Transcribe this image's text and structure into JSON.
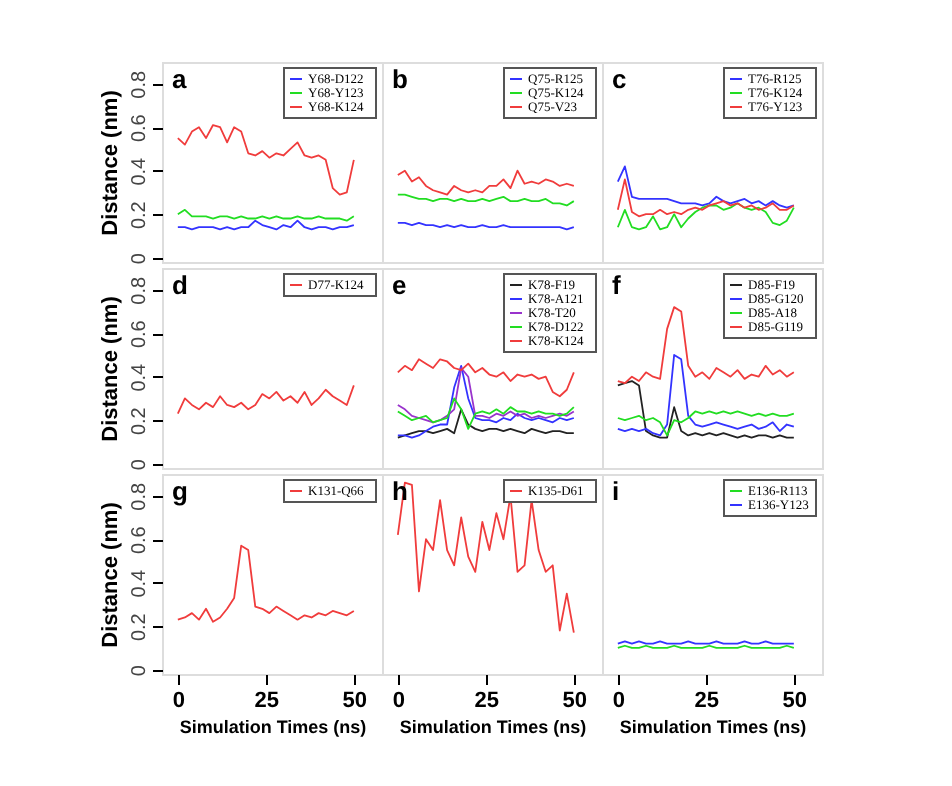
{
  "chart_data": [
    {
      "type": "line",
      "annotations": [
        "a"
      ],
      "ylabel": "Distance (nm)",
      "x": [
        0,
        2,
        4,
        6,
        8,
        10,
        12,
        14,
        16,
        18,
        20,
        22,
        24,
        26,
        28,
        30,
        32,
        34,
        36,
        38,
        40,
        42,
        44,
        46,
        48,
        50
      ],
      "xlim": [
        -4.5,
        58
      ],
      "ylim": [
        -0.02,
        0.9
      ],
      "xticks": [
        0,
        25,
        50
      ],
      "yticks": [
        0,
        0.2,
        0.4,
        0.6,
        0.8
      ],
      "tick_labels": "y",
      "legend": "top right",
      "series": [
        {
          "name": "Y68-D122",
          "color": "#3333ff",
          "values": [
            0.14,
            0.14,
            0.13,
            0.14,
            0.14,
            0.14,
            0.13,
            0.14,
            0.13,
            0.14,
            0.14,
            0.17,
            0.15,
            0.14,
            0.13,
            0.15,
            0.14,
            0.17,
            0.14,
            0.13,
            0.14,
            0.14,
            0.13,
            0.14,
            0.14,
            0.15
          ]
        },
        {
          "name": "Y68-Y123",
          "color": "#22dd22",
          "values": [
            0.2,
            0.22,
            0.19,
            0.19,
            0.19,
            0.18,
            0.19,
            0.19,
            0.18,
            0.19,
            0.18,
            0.18,
            0.19,
            0.18,
            0.19,
            0.18,
            0.18,
            0.19,
            0.18,
            0.18,
            0.19,
            0.18,
            0.18,
            0.18,
            0.17,
            0.19
          ]
        },
        {
          "name": "Y68-K124",
          "color": "#f03c3c",
          "values": [
            0.55,
            0.52,
            0.58,
            0.6,
            0.55,
            0.61,
            0.6,
            0.53,
            0.6,
            0.58,
            0.48,
            0.47,
            0.49,
            0.46,
            0.48,
            0.47,
            0.5,
            0.53,
            0.47,
            0.46,
            0.47,
            0.45,
            0.32,
            0.29,
            0.3,
            0.45
          ]
        }
      ]
    },
    {
      "type": "line",
      "annotations": [
        "b"
      ],
      "x": [
        0,
        2,
        4,
        6,
        8,
        10,
        12,
        14,
        16,
        18,
        20,
        22,
        24,
        26,
        28,
        30,
        32,
        34,
        36,
        38,
        40,
        42,
        44,
        46,
        48,
        50
      ],
      "xlim": [
        -4.5,
        58
      ],
      "ylim": [
        -0.02,
        0.9
      ],
      "xticks": [
        0,
        25,
        50
      ],
      "yticks": [
        0,
        0.2,
        0.4,
        0.6,
        0.8
      ],
      "tick_labels": false,
      "legend": "top right",
      "series": [
        {
          "name": "Q75-R125",
          "color": "#3333ff",
          "values": [
            0.16,
            0.16,
            0.15,
            0.16,
            0.15,
            0.15,
            0.14,
            0.15,
            0.14,
            0.15,
            0.14,
            0.14,
            0.15,
            0.14,
            0.14,
            0.15,
            0.14,
            0.14,
            0.14,
            0.14,
            0.14,
            0.14,
            0.14,
            0.14,
            0.13,
            0.14
          ]
        },
        {
          "name": "Q75-K124",
          "color": "#22dd22",
          "values": [
            0.29,
            0.29,
            0.28,
            0.27,
            0.27,
            0.26,
            0.27,
            0.27,
            0.26,
            0.27,
            0.26,
            0.26,
            0.27,
            0.26,
            0.27,
            0.28,
            0.26,
            0.26,
            0.27,
            0.26,
            0.26,
            0.27,
            0.25,
            0.25,
            0.24,
            0.26
          ]
        },
        {
          "name": "Q75-V23",
          "color": "#f03c3c",
          "values": [
            0.38,
            0.4,
            0.35,
            0.37,
            0.33,
            0.31,
            0.3,
            0.29,
            0.33,
            0.31,
            0.3,
            0.31,
            0.3,
            0.33,
            0.33,
            0.36,
            0.32,
            0.4,
            0.34,
            0.35,
            0.34,
            0.36,
            0.35,
            0.33,
            0.34,
            0.33
          ]
        }
      ]
    },
    {
      "type": "line",
      "annotations": [
        "c"
      ],
      "x": [
        0,
        2,
        4,
        6,
        8,
        10,
        12,
        14,
        16,
        18,
        20,
        22,
        24,
        26,
        28,
        30,
        32,
        34,
        36,
        38,
        40,
        42,
        44,
        46,
        48,
        50
      ],
      "xlim": [
        -4.5,
        58
      ],
      "ylim": [
        -0.02,
        0.9
      ],
      "xticks": [
        0,
        25,
        50
      ],
      "yticks": [
        0,
        0.2,
        0.4,
        0.6,
        0.8
      ],
      "tick_labels": false,
      "legend": "top right",
      "series": [
        {
          "name": "T76-R125",
          "color": "#3333ff",
          "values": [
            0.35,
            0.42,
            0.28,
            0.27,
            0.27,
            0.27,
            0.27,
            0.27,
            0.26,
            0.25,
            0.25,
            0.25,
            0.24,
            0.25,
            0.28,
            0.26,
            0.25,
            0.26,
            0.27,
            0.25,
            0.26,
            0.24,
            0.26,
            0.24,
            0.23,
            0.24
          ]
        },
        {
          "name": "T76-K124",
          "color": "#22dd22",
          "values": [
            0.14,
            0.22,
            0.14,
            0.13,
            0.14,
            0.19,
            0.13,
            0.14,
            0.2,
            0.14,
            0.18,
            0.21,
            0.23,
            0.24,
            0.24,
            0.22,
            0.23,
            0.25,
            0.23,
            0.22,
            0.23,
            0.21,
            0.16,
            0.15,
            0.17,
            0.23
          ]
        },
        {
          "name": "T76-Y123",
          "color": "#f03c3c",
          "values": [
            0.22,
            0.36,
            0.21,
            0.19,
            0.2,
            0.2,
            0.22,
            0.2,
            0.21,
            0.2,
            0.22,
            0.23,
            0.22,
            0.24,
            0.25,
            0.26,
            0.24,
            0.25,
            0.23,
            0.24,
            0.22,
            0.23,
            0.25,
            0.22,
            0.22,
            0.24
          ]
        }
      ]
    },
    {
      "type": "line",
      "annotations": [
        "d"
      ],
      "ylabel": "Distance (nm)",
      "x": [
        0,
        2,
        4,
        6,
        8,
        10,
        12,
        14,
        16,
        18,
        20,
        22,
        24,
        26,
        28,
        30,
        32,
        34,
        36,
        38,
        40,
        42,
        44,
        46,
        48,
        50
      ],
      "xlim": [
        -4.5,
        58
      ],
      "ylim": [
        -0.02,
        0.9
      ],
      "xticks": [
        0,
        25,
        50
      ],
      "yticks": [
        0,
        0.2,
        0.4,
        0.6,
        0.8
      ],
      "tick_labels": "y",
      "legend": "top right",
      "series": [
        {
          "name": "D77-K124",
          "color": "#f03c3c",
          "values": [
            0.23,
            0.3,
            0.27,
            0.25,
            0.28,
            0.26,
            0.31,
            0.27,
            0.26,
            0.28,
            0.25,
            0.27,
            0.32,
            0.3,
            0.33,
            0.29,
            0.31,
            0.28,
            0.33,
            0.27,
            0.3,
            0.34,
            0.31,
            0.29,
            0.27,
            0.36
          ]
        }
      ]
    },
    {
      "type": "line",
      "annotations": [
        "e"
      ],
      "x": [
        0,
        2,
        4,
        6,
        8,
        10,
        12,
        14,
        16,
        18,
        20,
        22,
        24,
        26,
        28,
        30,
        32,
        34,
        36,
        38,
        40,
        42,
        44,
        46,
        48,
        50
      ],
      "xlim": [
        -4.5,
        58
      ],
      "ylim": [
        -0.02,
        0.9
      ],
      "xticks": [
        0,
        25,
        50
      ],
      "yticks": [
        0,
        0.2,
        0.4,
        0.6,
        0.8
      ],
      "tick_labels": false,
      "legend": "top right",
      "series": [
        {
          "name": "K78-F19",
          "color": "#222222",
          "values": [
            0.12,
            0.13,
            0.14,
            0.15,
            0.15,
            0.14,
            0.15,
            0.16,
            0.14,
            0.25,
            0.18,
            0.16,
            0.15,
            0.16,
            0.16,
            0.15,
            0.16,
            0.15,
            0.14,
            0.16,
            0.15,
            0.14,
            0.15,
            0.15,
            0.14,
            0.14
          ]
        },
        {
          "name": "K78-A121",
          "color": "#3333ff",
          "values": [
            0.13,
            0.13,
            0.12,
            0.13,
            0.15,
            0.17,
            0.18,
            0.18,
            0.35,
            0.45,
            0.3,
            0.21,
            0.2,
            0.2,
            0.19,
            0.21,
            0.2,
            0.23,
            0.21,
            0.2,
            0.21,
            0.2,
            0.19,
            0.21,
            0.2,
            0.21
          ]
        },
        {
          "name": "K78-T20",
          "color": "#9933cc",
          "values": [
            0.27,
            0.25,
            0.22,
            0.21,
            0.2,
            0.19,
            0.2,
            0.22,
            0.25,
            0.44,
            0.4,
            0.22,
            0.22,
            0.21,
            0.23,
            0.22,
            0.24,
            0.22,
            0.23,
            0.21,
            0.22,
            0.21,
            0.22,
            0.23,
            0.22,
            0.24
          ]
        },
        {
          "name": "K78-D122",
          "color": "#22dd22",
          "values": [
            0.24,
            0.22,
            0.2,
            0.21,
            0.22,
            0.19,
            0.2,
            0.21,
            0.3,
            0.25,
            0.16,
            0.23,
            0.24,
            0.23,
            0.25,
            0.23,
            0.26,
            0.24,
            0.24,
            0.23,
            0.24,
            0.23,
            0.23,
            0.22,
            0.23,
            0.26
          ]
        },
        {
          "name": "K78-K124",
          "color": "#f03c3c",
          "values": [
            0.42,
            0.45,
            0.43,
            0.48,
            0.46,
            0.44,
            0.48,
            0.47,
            0.44,
            0.43,
            0.46,
            0.42,
            0.44,
            0.41,
            0.4,
            0.42,
            0.38,
            0.41,
            0.4,
            0.41,
            0.39,
            0.4,
            0.33,
            0.31,
            0.34,
            0.42
          ]
        }
      ]
    },
    {
      "type": "line",
      "annotations": [
        "f"
      ],
      "x": [
        0,
        2,
        4,
        6,
        8,
        10,
        12,
        14,
        16,
        18,
        20,
        22,
        24,
        26,
        28,
        30,
        32,
        34,
        36,
        38,
        40,
        42,
        44,
        46,
        48,
        50
      ],
      "xlim": [
        -4.5,
        58
      ],
      "ylim": [
        -0.02,
        0.9
      ],
      "xticks": [
        0,
        25,
        50
      ],
      "yticks": [
        0,
        0.2,
        0.4,
        0.6,
        0.8
      ],
      "tick_labels": false,
      "legend": "top right",
      "series": [
        {
          "name": "D85-F19",
          "color": "#222222",
          "values": [
            0.36,
            0.37,
            0.38,
            0.36,
            0.15,
            0.13,
            0.12,
            0.12,
            0.26,
            0.15,
            0.13,
            0.14,
            0.13,
            0.14,
            0.13,
            0.14,
            0.13,
            0.12,
            0.13,
            0.12,
            0.13,
            0.13,
            0.12,
            0.13,
            0.12,
            0.12
          ]
        },
        {
          "name": "D85-G120",
          "color": "#3333ff",
          "values": [
            0.16,
            0.15,
            0.16,
            0.15,
            0.16,
            0.14,
            0.13,
            0.18,
            0.5,
            0.48,
            0.22,
            0.18,
            0.17,
            0.18,
            0.19,
            0.18,
            0.17,
            0.16,
            0.17,
            0.18,
            0.16,
            0.17,
            0.19,
            0.15,
            0.18,
            0.17
          ]
        },
        {
          "name": "D85-A18",
          "color": "#22dd22",
          "values": [
            0.21,
            0.2,
            0.21,
            0.22,
            0.2,
            0.21,
            0.19,
            0.13,
            0.2,
            0.19,
            0.21,
            0.24,
            0.23,
            0.24,
            0.23,
            0.24,
            0.23,
            0.24,
            0.23,
            0.22,
            0.23,
            0.22,
            0.23,
            0.22,
            0.22,
            0.23
          ]
        },
        {
          "name": "D85-G119",
          "color": "#f03c3c",
          "values": [
            0.38,
            0.37,
            0.4,
            0.38,
            0.42,
            0.4,
            0.39,
            0.62,
            0.72,
            0.7,
            0.45,
            0.4,
            0.42,
            0.39,
            0.44,
            0.42,
            0.4,
            0.43,
            0.39,
            0.41,
            0.4,
            0.45,
            0.41,
            0.43,
            0.4,
            0.42
          ]
        }
      ]
    },
    {
      "type": "line",
      "annotations": [
        "g"
      ],
      "xlabel": "Simulation Times (ns)",
      "ylabel": "Distance (nm)",
      "x": [
        0,
        2,
        4,
        6,
        8,
        10,
        12,
        14,
        16,
        18,
        20,
        22,
        24,
        26,
        28,
        30,
        32,
        34,
        36,
        38,
        40,
        42,
        44,
        46,
        48,
        50
      ],
      "xlim": [
        -4.5,
        58
      ],
      "ylim": [
        -0.02,
        0.9
      ],
      "xticks": [
        0,
        25,
        50
      ],
      "yticks": [
        0,
        0.2,
        0.4,
        0.6,
        0.8
      ],
      "legend": "top right",
      "series": [
        {
          "name": "K131-Q66",
          "color": "#f03c3c",
          "values": [
            0.23,
            0.24,
            0.26,
            0.23,
            0.28,
            0.22,
            0.24,
            0.28,
            0.33,
            0.57,
            0.55,
            0.29,
            0.28,
            0.26,
            0.29,
            0.27,
            0.25,
            0.23,
            0.25,
            0.24,
            0.26,
            0.25,
            0.27,
            0.26,
            0.25,
            0.27
          ]
        }
      ]
    },
    {
      "type": "line",
      "annotations": [
        "h"
      ],
      "xlabel": "Simulation Times (ns)",
      "x": [
        0,
        2,
        4,
        6,
        8,
        10,
        12,
        14,
        16,
        18,
        20,
        22,
        24,
        26,
        28,
        30,
        32,
        34,
        36,
        38,
        40,
        42,
        44,
        46,
        48,
        50
      ],
      "xlim": [
        -4.5,
        58
      ],
      "ylim": [
        -0.02,
        0.9
      ],
      "xticks": [
        0,
        25,
        50
      ],
      "yticks": [
        0,
        0.2,
        0.4,
        0.6,
        0.8
      ],
      "tick_labels": "x",
      "legend": "top right",
      "series": [
        {
          "name": "K135-D61",
          "color": "#f03c3c",
          "values": [
            0.62,
            0.86,
            0.85,
            0.36,
            0.6,
            0.55,
            0.78,
            0.55,
            0.48,
            0.7,
            0.52,
            0.45,
            0.68,
            0.55,
            0.72,
            0.6,
            0.8,
            0.45,
            0.48,
            0.78,
            0.55,
            0.45,
            0.48,
            0.18,
            0.35,
            0.17
          ]
        }
      ]
    },
    {
      "type": "line",
      "annotations": [
        "i"
      ],
      "xlabel": "Simulation Times (ns)",
      "x": [
        0,
        2,
        4,
        6,
        8,
        10,
        12,
        14,
        16,
        18,
        20,
        22,
        24,
        26,
        28,
        30,
        32,
        34,
        36,
        38,
        40,
        42,
        44,
        46,
        48,
        50
      ],
      "xlim": [
        -4.5,
        58
      ],
      "ylim": [
        -0.02,
        0.9
      ],
      "xticks": [
        0,
        25,
        50
      ],
      "yticks": [
        0,
        0.2,
        0.4,
        0.6,
        0.8
      ],
      "tick_labels": "x",
      "legend": "top right",
      "series": [
        {
          "name": "E136-R113",
          "color": "#22dd22",
          "values": [
            0.1,
            0.11,
            0.1,
            0.1,
            0.11,
            0.1,
            0.1,
            0.1,
            0.11,
            0.1,
            0.1,
            0.1,
            0.1,
            0.11,
            0.1,
            0.1,
            0.1,
            0.1,
            0.11,
            0.1,
            0.1,
            0.1,
            0.1,
            0.1,
            0.11,
            0.1
          ]
        },
        {
          "name": "E136-Y123",
          "color": "#3333ff",
          "values": [
            0.12,
            0.13,
            0.12,
            0.13,
            0.12,
            0.12,
            0.13,
            0.12,
            0.12,
            0.12,
            0.13,
            0.12,
            0.12,
            0.12,
            0.13,
            0.12,
            0.12,
            0.12,
            0.13,
            0.12,
            0.12,
            0.13,
            0.12,
            0.12,
            0.12,
            0.12
          ]
        }
      ]
    }
  ]
}
